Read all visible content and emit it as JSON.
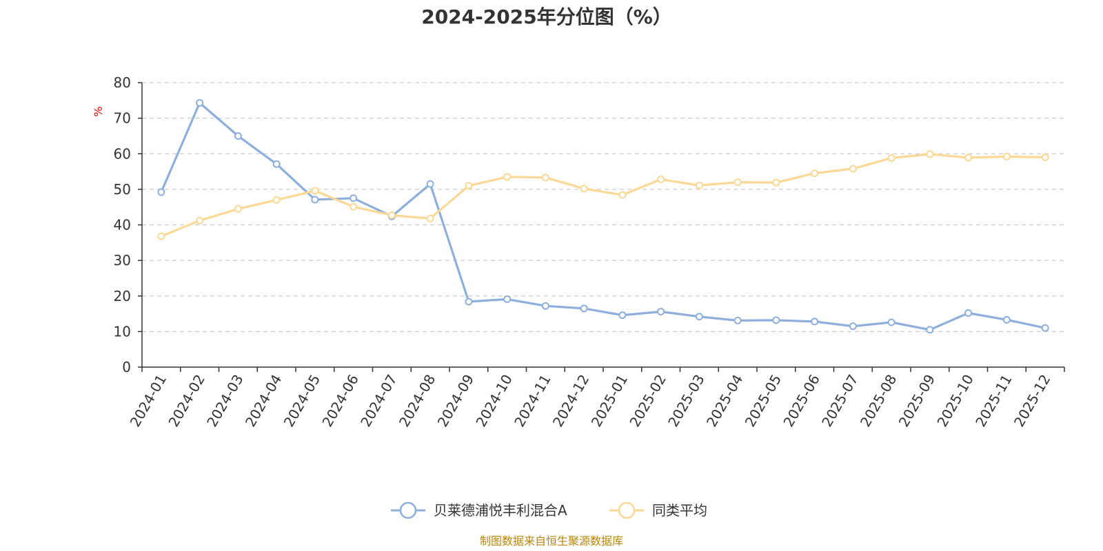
{
  "chart_data": {
    "type": "line",
    "title": "2024-2025年分位图（%）",
    "ylabel": "%",
    "ylim": [
      0,
      80
    ],
    "yticks": [
      "0",
      "10",
      "20",
      "30",
      "40",
      "50",
      "60",
      "70",
      "80"
    ],
    "grid": true,
    "legend_position": "bottom-center",
    "categories": [
      "2024-01",
      "2024-02",
      "2024-03",
      "2024-04",
      "2024-05",
      "2024-06",
      "2024-07",
      "2024-08",
      "2024-09",
      "2024-10",
      "2024-11",
      "2024-12",
      "2025-01",
      "2025-02",
      "2025-03",
      "2025-04",
      "2025-05",
      "2025-06",
      "2025-07",
      "2025-08",
      "2025-09",
      "2025-10",
      "2025-11",
      "2025-12"
    ],
    "series": [
      {
        "name": "贝莱德浦悦丰利混合A",
        "color": "#8eaedb",
        "values": [
          49.2,
          74.3,
          65.0,
          57.1,
          47.1,
          47.5,
          42.4,
          51.5,
          18.4,
          19.1,
          17.2,
          16.5,
          14.6,
          15.6,
          14.2,
          13.1,
          13.2,
          12.8,
          11.5,
          12.6,
          10.5,
          15.2,
          13.3,
          11.0
        ]
      },
      {
        "name": "同类平均",
        "color": "#fbd895",
        "values": [
          36.8,
          41.2,
          44.5,
          47.0,
          49.6,
          45.1,
          42.7,
          41.8,
          51.0,
          53.5,
          53.3,
          50.2,
          48.4,
          52.8,
          51.1,
          52.0,
          51.9,
          54.5,
          55.8,
          58.8,
          59.9,
          58.9,
          59.2,
          59.0
        ]
      }
    ]
  },
  "source_note": "制图数据来自恒生聚源数据库",
  "colors": {
    "axis": "#333333",
    "grid": "#cccccc",
    "ylabel": "#ff0000",
    "source_note": "#b8860b"
  }
}
